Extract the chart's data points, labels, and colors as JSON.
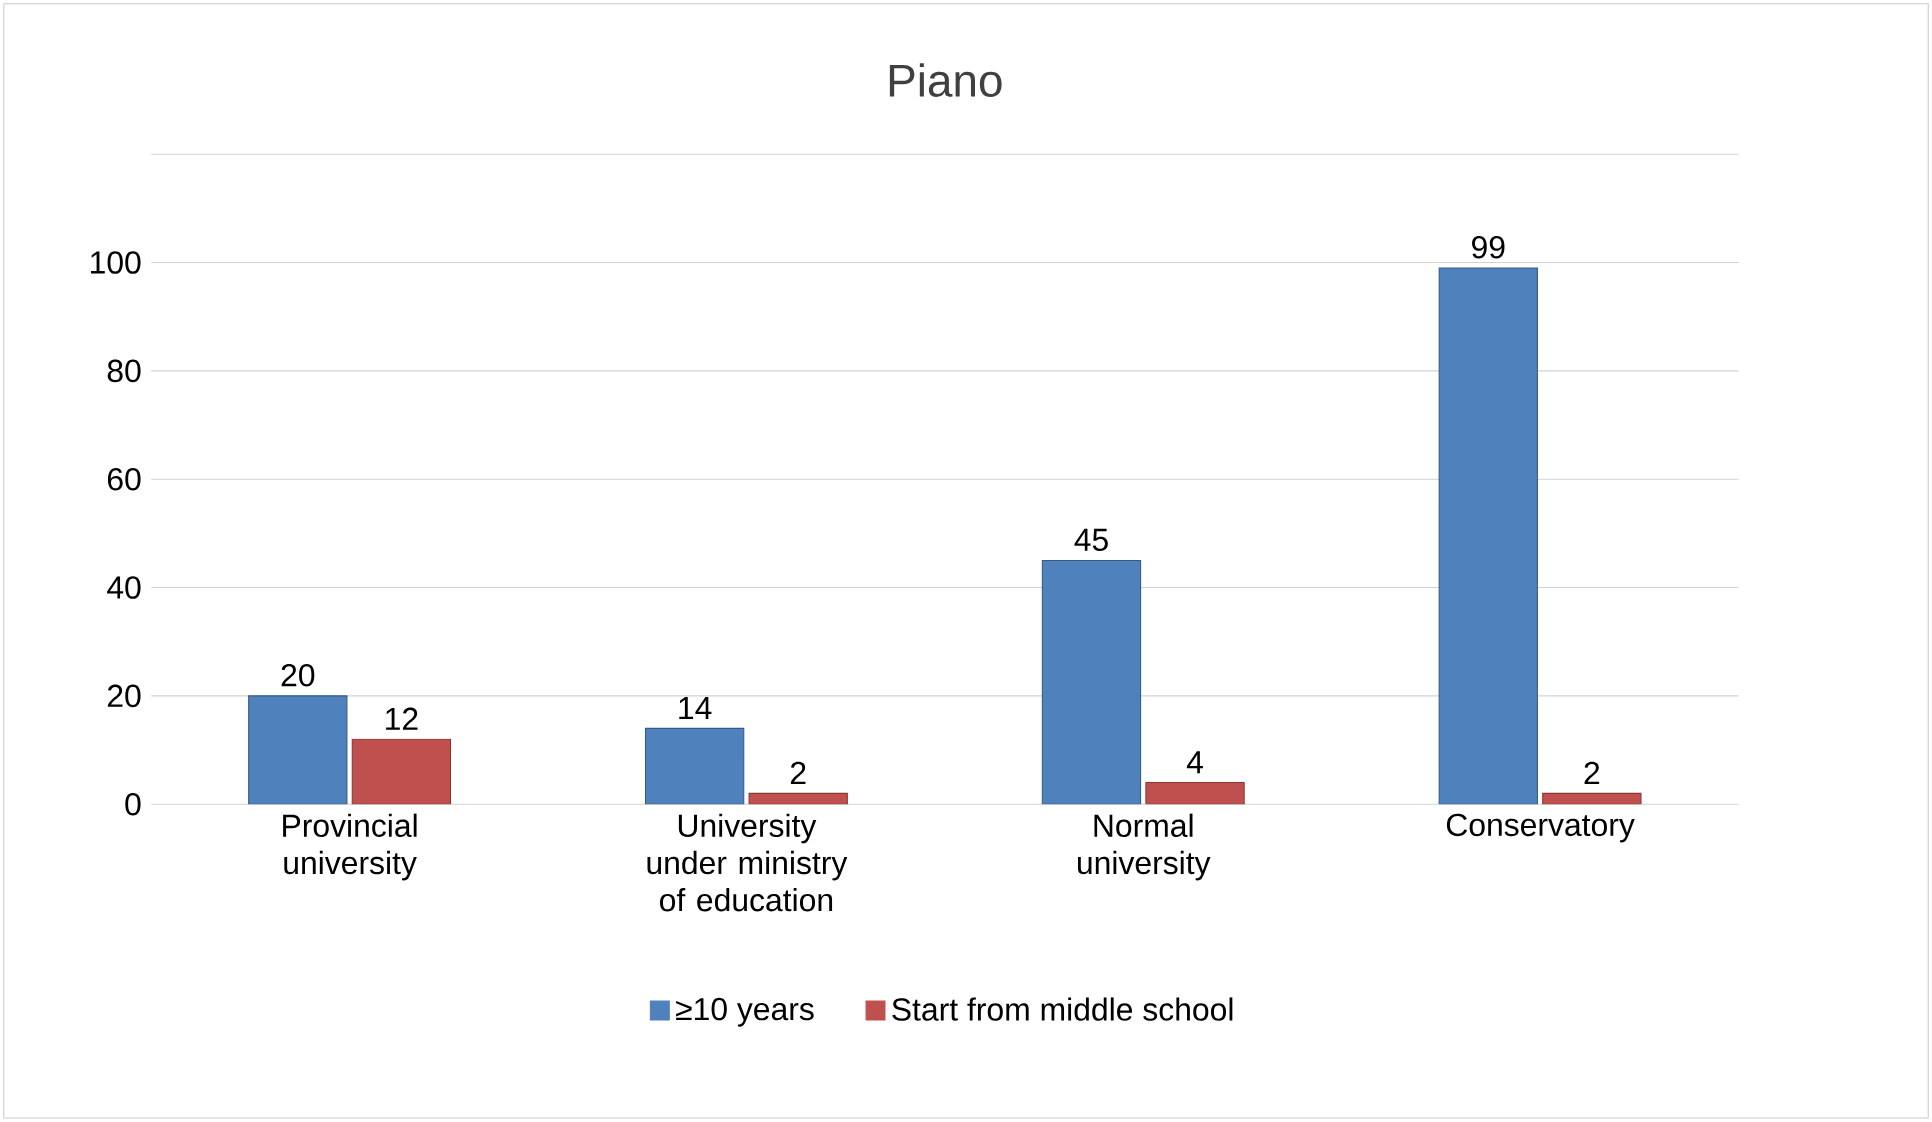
{
  "chart_data": {
    "type": "bar",
    "title": "Piano",
    "categories": [
      "Provincial university",
      "University under ministry of education",
      "Normal university",
      "Conservatory"
    ],
    "series": [
      {
        "name": "≥10 years",
        "color": "#4f81bd",
        "values": [
          20,
          14,
          45,
          99
        ]
      },
      {
        "name": "Start from middle school",
        "color": "#c0504d",
        "values": [
          12,
          2,
          4,
          2
        ]
      }
    ],
    "ylim": [
      0,
      120
    ],
    "yticks": [
      0,
      20,
      40,
      60,
      80,
      100,
      {
        "value": 120,
        "label": null
      }
    ],
    "grid": "y",
    "legend": "bottom",
    "data_labels": true
  }
}
